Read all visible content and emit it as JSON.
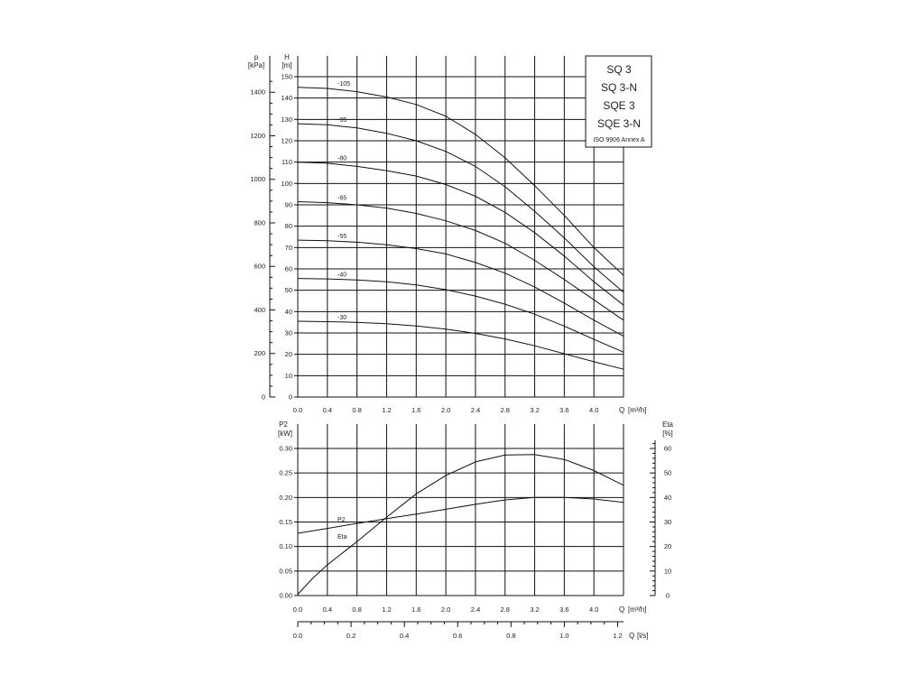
{
  "title_box": {
    "lines": [
      "SQ 3",
      "SQ 3-N",
      "SQE 3",
      "SQE 3-N"
    ],
    "note": "ISO 9906 Annex A"
  },
  "chart_data": [
    {
      "type": "line",
      "panel": "head",
      "axes": {
        "left_outer": {
          "name": "p",
          "unit": "[kPa]",
          "ticks": [
            0,
            200,
            400,
            600,
            800,
            1000,
            1200,
            1400
          ]
        },
        "left_inner": {
          "name": "H",
          "unit": "[m]",
          "range": [
            0,
            150
          ],
          "ticks": [
            0,
            10,
            20,
            30,
            40,
            50,
            60,
            70,
            80,
            90,
            100,
            110,
            120,
            130,
            140,
            150
          ]
        },
        "x": {
          "name": "Q",
          "unit": "[m³/h]",
          "range": [
            0,
            4.4
          ],
          "ticks": [
            "0.0",
            "0.4",
            "0.8",
            "1.2",
            "1.6",
            "2.0",
            "2.4",
            "2.8",
            "3.2",
            "3.6",
            "4.0"
          ]
        }
      },
      "grid": true,
      "series": [
        {
          "name": "-105",
          "points": [
            [
              0,
              145
            ],
            [
              0.4,
              144.5
            ],
            [
              0.8,
              143
            ],
            [
              1.2,
              140.5
            ],
            [
              1.6,
              137
            ],
            [
              2.0,
              131.5
            ],
            [
              2.4,
              123
            ],
            [
              2.8,
              112
            ],
            [
              3.2,
              99
            ],
            [
              3.6,
              85
            ],
            [
              4.0,
              70
            ],
            [
              4.4,
              57
            ]
          ]
        },
        {
          "name": "-95",
          "points": [
            [
              0,
              128
            ],
            [
              0.4,
              127.5
            ],
            [
              0.8,
              126
            ],
            [
              1.2,
              123.5
            ],
            [
              1.6,
              120
            ],
            [
              2.0,
              115
            ],
            [
              2.4,
              108
            ],
            [
              2.8,
              98.5
            ],
            [
              3.2,
              87
            ],
            [
              3.6,
              74.5
            ],
            [
              4.0,
              61
            ],
            [
              4.4,
              49
            ]
          ]
        },
        {
          "name": "-80",
          "points": [
            [
              0,
              110
            ],
            [
              0.4,
              109.5
            ],
            [
              0.8,
              108
            ],
            [
              1.2,
              106
            ],
            [
              1.6,
              103.5
            ],
            [
              2.0,
              99.5
            ],
            [
              2.4,
              94
            ],
            [
              2.8,
              86.5
            ],
            [
              3.2,
              77
            ],
            [
              3.6,
              66
            ],
            [
              4.0,
              54
            ],
            [
              4.4,
              43
            ]
          ]
        },
        {
          "name": "-65",
          "points": [
            [
              0,
              91.5
            ],
            [
              0.4,
              91
            ],
            [
              0.8,
              90
            ],
            [
              1.2,
              88.5
            ],
            [
              1.6,
              86
            ],
            [
              2.0,
              82.5
            ],
            [
              2.4,
              78
            ],
            [
              2.8,
              72
            ],
            [
              3.2,
              64
            ],
            [
              3.6,
              55
            ],
            [
              4.0,
              45.5
            ],
            [
              4.4,
              36
            ]
          ]
        },
        {
          "name": "-55",
          "points": [
            [
              0,
              73.5
            ],
            [
              0.4,
              73.2
            ],
            [
              0.8,
              72.5
            ],
            [
              1.2,
              71.3
            ],
            [
              1.6,
              69.5
            ],
            [
              2.0,
              67
            ],
            [
              2.4,
              63
            ],
            [
              2.8,
              58
            ],
            [
              3.2,
              51.5
            ],
            [
              3.6,
              44
            ],
            [
              4.0,
              36
            ],
            [
              4.4,
              28.5
            ]
          ]
        },
        {
          "name": "-40",
          "points": [
            [
              0,
              55.5
            ],
            [
              0.4,
              55.3
            ],
            [
              0.8,
              54.8
            ],
            [
              1.2,
              54
            ],
            [
              1.6,
              52.5
            ],
            [
              2.0,
              50.3
            ],
            [
              2.4,
              47.3
            ],
            [
              2.8,
              43.5
            ],
            [
              3.2,
              38.8
            ],
            [
              3.6,
              33.2
            ],
            [
              4.0,
              27
            ],
            [
              4.4,
              21
            ]
          ]
        },
        {
          "name": "-30",
          "points": [
            [
              0,
              35.5
            ],
            [
              0.4,
              35.3
            ],
            [
              0.8,
              35
            ],
            [
              1.2,
              34.3
            ],
            [
              1.6,
              33.3
            ],
            [
              2.0,
              31.8
            ],
            [
              2.4,
              29.8
            ],
            [
              2.8,
              27.2
            ],
            [
              3.2,
              24
            ],
            [
              3.6,
              20.3
            ],
            [
              4.0,
              16.5
            ],
            [
              4.4,
              13
            ]
          ]
        }
      ]
    },
    {
      "type": "line",
      "panel": "power-efficiency",
      "axes": {
        "left": {
          "name": "P2",
          "unit": "[kW]",
          "range": [
            0,
            0.3
          ],
          "ticks": [
            "0.00",
            "0.05",
            "0.10",
            "0.15",
            "0.20",
            "0.25",
            "0.30"
          ]
        },
        "right": {
          "name": "Eta",
          "unit": "[%]",
          "range": [
            0,
            60
          ],
          "ticks": [
            "0",
            "10",
            "20",
            "30",
            "40",
            "50",
            "60"
          ]
        },
        "x": {
          "name": "Q",
          "unit": "[m³/h]",
          "range": [
            0,
            4.4
          ],
          "ticks": [
            "0.0",
            "0.4",
            "0.8",
            "1.2",
            "1.6",
            "2.0",
            "2.4",
            "2.8",
            "3.2",
            "3.6",
            "4.0"
          ]
        },
        "x_secondary": {
          "name": "Q",
          "unit": "[l/s]",
          "range": [
            0,
            1.2222
          ],
          "ticks": [
            "0.0",
            "0.2",
            "0.4",
            "0.6",
            "0.8",
            "1.0",
            "1.2"
          ]
        }
      },
      "grid": true,
      "series": [
        {
          "name": "P2",
          "axis": "left",
          "points": [
            [
              0,
              0.127
            ],
            [
              0.4,
              0.137
            ],
            [
              0.8,
              0.147
            ],
            [
              1.2,
              0.157
            ],
            [
              1.6,
              0.166
            ],
            [
              2.0,
              0.176
            ],
            [
              2.4,
              0.186
            ],
            [
              2.8,
              0.195
            ],
            [
              3.2,
              0.2
            ],
            [
              3.6,
              0.2
            ],
            [
              4.0,
              0.197
            ],
            [
              4.4,
              0.19
            ]
          ]
        },
        {
          "name": "Eta",
          "axis": "right",
          "points": [
            [
              0,
              0.5
            ],
            [
              0.2,
              7
            ],
            [
              0.4,
              12.5
            ],
            [
              0.8,
              22
            ],
            [
              1.2,
              32
            ],
            [
              1.6,
              41.5
            ],
            [
              2.0,
              49
            ],
            [
              2.4,
              54.5
            ],
            [
              2.8,
              57.3
            ],
            [
              3.2,
              57.5
            ],
            [
              3.6,
              55.5
            ],
            [
              4.0,
              51
            ],
            [
              4.4,
              45
            ]
          ]
        }
      ]
    }
  ]
}
